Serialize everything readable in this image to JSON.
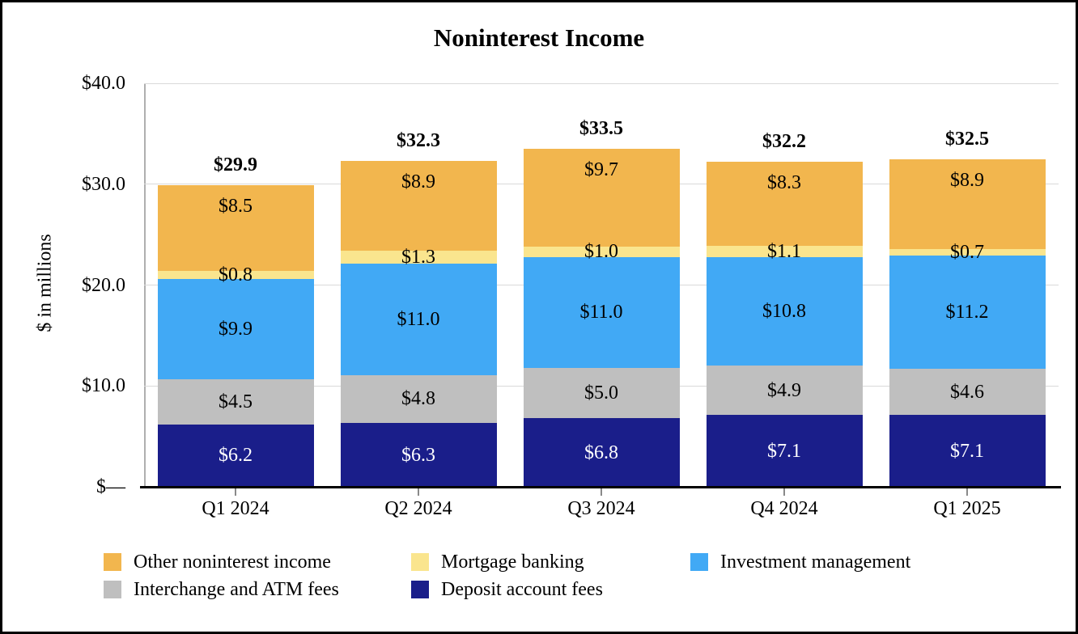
{
  "chart_data": {
    "type": "bar",
    "stacked": true,
    "title": "Noninterest Income",
    "ylabel": "$ in millions",
    "ylim": [
      0,
      40
    ],
    "grid": true,
    "legend_position": "bottom",
    "categories": [
      "Q1 2024",
      "Q2 2024",
      "Q3 2024",
      "Q4 2024",
      "Q1 2025"
    ],
    "y_ticks": [
      {
        "value": 40,
        "label": "$40.0"
      },
      {
        "value": 30,
        "label": "$30.0"
      },
      {
        "value": 20,
        "label": "$20.0"
      },
      {
        "value": 10,
        "label": "$10.0"
      },
      {
        "value": 0,
        "label": "$—"
      }
    ],
    "series": [
      {
        "name": "Deposit account fees",
        "color": "#1A1E8A",
        "label_color": "#FFFFFF",
        "label_position": "center",
        "values": [
          6.2,
          6.3,
          6.8,
          7.1,
          7.1
        ],
        "labels": [
          "$6.2",
          "$6.3",
          "$6.8",
          "$7.1",
          "$7.1"
        ]
      },
      {
        "name": "Interchange and ATM fees",
        "color": "#BFBFBF",
        "label_color": "#000000",
        "label_position": "center",
        "values": [
          4.5,
          4.8,
          5.0,
          4.9,
          4.6
        ],
        "labels": [
          "$4.5",
          "$4.8",
          "$5.0",
          "$4.9",
          "$4.6"
        ]
      },
      {
        "name": "Investment management",
        "color": "#41A9F5",
        "label_color": "#000000",
        "label_position": "center",
        "values": [
          9.9,
          11.0,
          11.0,
          10.8,
          11.2
        ],
        "labels": [
          "$9.9",
          "$11.0",
          "$11.0",
          "$10.8",
          "$11.2"
        ]
      },
      {
        "name": "Mortgage banking",
        "color": "#FAE58E",
        "label_color": "#000000",
        "label_position": "center",
        "values": [
          0.8,
          1.3,
          1.0,
          1.1,
          0.7
        ],
        "labels": [
          "$0.8",
          "$1.3",
          "$1.0",
          "$1.1",
          "$0.7"
        ]
      },
      {
        "name": "Other noninterest income",
        "color": "#F2B64E",
        "label_color": "#000000",
        "label_position": "inside-top",
        "values": [
          8.5,
          8.9,
          9.7,
          8.3,
          8.9
        ],
        "labels": [
          "$8.5",
          "$8.9",
          "$9.7",
          "$8.3",
          "$8.9"
        ]
      }
    ],
    "totals": {
      "values": [
        29.9,
        32.3,
        33.5,
        32.2,
        32.5
      ],
      "labels": [
        "$29.9",
        "$32.3",
        "$33.5",
        "$32.2",
        "$32.5"
      ]
    },
    "legend": [
      {
        "label": "Other noninterest income",
        "color": "#F2B64E"
      },
      {
        "label": "Mortgage banking",
        "color": "#FAE58E"
      },
      {
        "label": "Investment management",
        "color": "#41A9F5"
      },
      {
        "label": "Interchange and ATM fees",
        "color": "#BFBFBF"
      },
      {
        "label": "Deposit account fees",
        "color": "#1A1E8A"
      }
    ]
  }
}
